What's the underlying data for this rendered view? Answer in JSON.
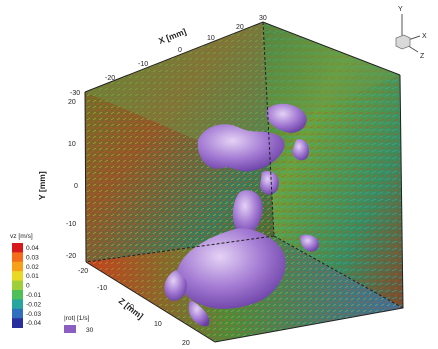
{
  "figure": {
    "x_axis": {
      "title": "X [mm]",
      "ticks": [
        "-30",
        "-20",
        "-10",
        "0",
        "10",
        "20",
        "30"
      ]
    },
    "y_axis": {
      "title": "Y [mm]",
      "ticks": [
        "20",
        "10",
        "0",
        "-10",
        "-20"
      ]
    },
    "z_axis": {
      "title": "Z [mm]",
      "ticks": [
        "20",
        "10",
        "0",
        "-10",
        "-20"
      ]
    },
    "orientation_triad": {
      "labels": [
        "Y",
        "X",
        "Z"
      ]
    },
    "colorbar": {
      "title": "vz [m/s]",
      "ticks": [
        "0.04",
        "0.03",
        "0.02",
        "0.01",
        "0",
        "-0.01",
        "-0.02",
        "-0.03",
        "-0.04"
      ],
      "colors": [
        "#d7191c",
        "#f46d1a",
        "#f6a11a",
        "#e9d825",
        "#9ecf3a",
        "#4fbf5a",
        "#27a6a0",
        "#2f6fbe",
        "#2a2fa0"
      ]
    },
    "isosurface_legend": {
      "title": "|rot| [1/s]",
      "value": "30",
      "color": "#8a5fc0"
    }
  }
}
